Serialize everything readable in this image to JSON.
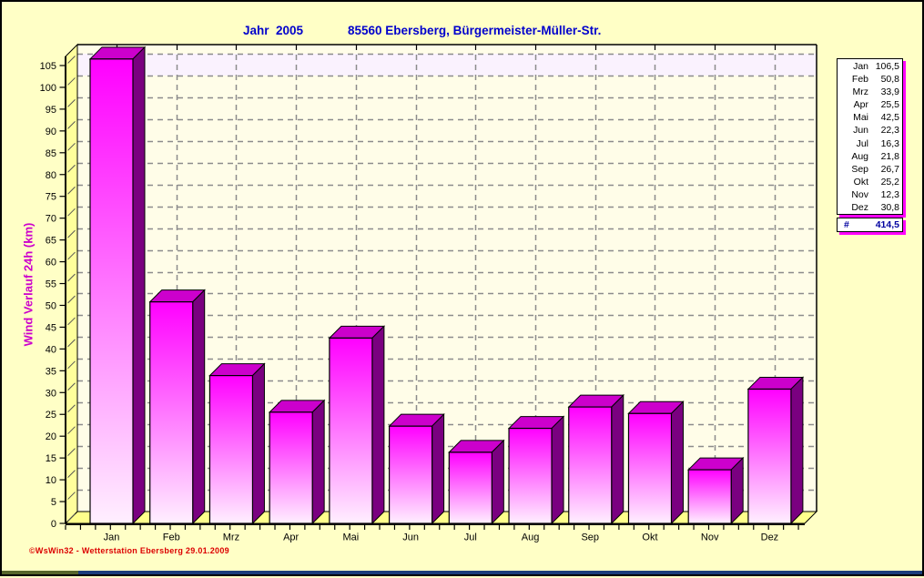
{
  "window": {
    "background": "#FFFFC6",
    "border_color": "#000000",
    "bottom_edge_left_color": "#56652B",
    "bottom_edge_right_color": "#1B3C7A"
  },
  "header": {
    "year": "Jahr  2005",
    "station": "85560 Ebersberg, Bürgermeister-Müller-Str.",
    "color": "#0000CC"
  },
  "y_axis": {
    "label": "Wind Verlauf 24h  (km)",
    "label_color": "#CC00CC",
    "ticks": [
      "0",
      "5",
      "10",
      "15",
      "20",
      "25",
      "30",
      "35",
      "40",
      "45",
      "50",
      "55",
      "60",
      "65",
      "70",
      "75",
      "80",
      "85",
      "90",
      "95",
      "100",
      "105"
    ]
  },
  "chart_data": {
    "type": "bar",
    "title": "Jahr 2005 — 85560 Ebersberg, Bürgermeister-Müller-Str.",
    "xlabel": "",
    "ylabel": "Wind Verlauf 24h (km)",
    "categories": [
      "Jan",
      "Feb",
      "Mrz",
      "Apr",
      "Mai",
      "Jun",
      "Jul",
      "Aug",
      "Sep",
      "Okt",
      "Nov",
      "Dez"
    ],
    "values": [
      106.5,
      50.8,
      33.9,
      25.5,
      42.5,
      22.3,
      16.3,
      21.8,
      26.7,
      25.2,
      12.3,
      30.8
    ],
    "total": 414.5,
    "ylim": [
      0,
      105
    ],
    "y_step": 5,
    "grid": true,
    "legend_position": "right",
    "style_3d": true,
    "colors": {
      "bar_front_top": "#FF00FF",
      "bar_front_bottom": "#FFEFFF",
      "bar_top_face": "#CC00CC",
      "bar_side_face": "#7A0080",
      "plot_background": "#FFFDE8",
      "plot_top_band": "#FAF2FE",
      "wall_fill": "#FFFF9C",
      "floor_fill": "#FFFF8C",
      "gridline": "#8C8C8C",
      "axis": "#000000"
    }
  },
  "legend": {
    "rows": [
      {
        "label": "Jan",
        "value": "106,5"
      },
      {
        "label": "Feb",
        "value": "50,8"
      },
      {
        "label": "Mrz",
        "value": "33,9"
      },
      {
        "label": "Apr",
        "value": "25,5"
      },
      {
        "label": "Mai",
        "value": "42,5"
      },
      {
        "label": "Jun",
        "value": "22,3"
      },
      {
        "label": "Jul",
        "value": "16,3"
      },
      {
        "label": "Aug",
        "value": "21,8"
      },
      {
        "label": "Sep",
        "value": "26,7"
      },
      {
        "label": "Okt",
        "value": "25,2"
      },
      {
        "label": "Nov",
        "value": "12,3"
      },
      {
        "label": "Dez",
        "value": "30,8"
      }
    ],
    "total_label": "#",
    "total_value": "414,5",
    "total_color": "#0000A0",
    "shadow_color": "#FF00FF"
  },
  "footer": {
    "credit": "©WsWin32 - Wetterstation Ebersberg  29.01.2009",
    "color": "#DC0000"
  }
}
